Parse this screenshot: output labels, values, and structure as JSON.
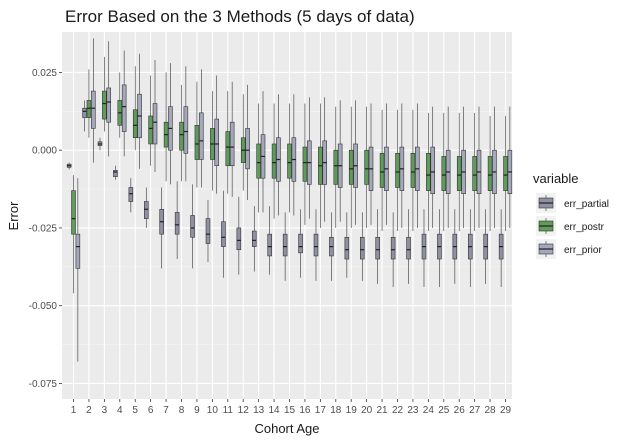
{
  "chart_data": {
    "type": "boxplot",
    "title": "Error Based on the 3 Methods (5 days of data)",
    "xlabel": "Cohort Age",
    "ylabel": "Error",
    "ylim": [
      -0.08,
      0.038
    ],
    "yticks": [
      0.025,
      0.0,
      -0.025,
      -0.05,
      -0.075
    ],
    "ytick_labels": [
      "0.025",
      "0.000",
      "-0.025",
      "-0.050",
      "-0.075"
    ],
    "categories": [
      "1",
      "2",
      "3",
      "4",
      "5",
      "6",
      "7",
      "8",
      "9",
      "10",
      "11",
      "12",
      "13",
      "14",
      "15",
      "16",
      "17",
      "18",
      "19",
      "20",
      "21",
      "22",
      "23",
      "24",
      "25",
      "26",
      "27",
      "28",
      "29"
    ],
    "grid": true,
    "legend": {
      "title": "variable",
      "position": "right"
    },
    "series": [
      {
        "name": "err_partial",
        "color": "#8f91a3",
        "boxes": [
          [
            -0.0062,
            -0.0055,
            -0.005,
            -0.0045,
            -0.004
          ],
          [
            0.006,
            0.0105,
            0.0125,
            0.0135,
            0.016
          ],
          [
            0.0,
            0.0015,
            0.002,
            0.0027,
            0.004
          ],
          [
            -0.0095,
            -0.0085,
            -0.007,
            -0.0065,
            -0.005
          ],
          [
            -0.02,
            -0.0165,
            -0.014,
            -0.012,
            -0.009
          ],
          [
            -0.025,
            -0.022,
            -0.019,
            -0.0165,
            -0.012
          ],
          [
            -0.038,
            -0.027,
            -0.023,
            -0.019,
            -0.012
          ],
          [
            -0.035,
            -0.027,
            -0.024,
            -0.02,
            -0.01
          ],
          [
            -0.038,
            -0.028,
            -0.025,
            -0.021,
            -0.011
          ],
          [
            -0.036,
            -0.03,
            -0.027,
            -0.022,
            -0.016
          ],
          [
            -0.041,
            -0.031,
            -0.028,
            -0.023,
            -0.013
          ],
          [
            -0.04,
            -0.032,
            -0.029,
            -0.025,
            -0.015
          ],
          [
            -0.039,
            -0.031,
            -0.029,
            -0.026,
            -0.018
          ],
          [
            -0.04,
            -0.034,
            -0.031,
            -0.027,
            -0.018
          ],
          [
            -0.042,
            -0.034,
            -0.031,
            -0.027,
            -0.02
          ],
          [
            -0.041,
            -0.033,
            -0.031,
            -0.027,
            -0.019
          ],
          [
            -0.042,
            -0.034,
            -0.031,
            -0.027,
            -0.019
          ],
          [
            -0.042,
            -0.034,
            -0.031,
            -0.028,
            -0.02
          ],
          [
            -0.041,
            -0.035,
            -0.032,
            -0.028,
            -0.02
          ],
          [
            -0.042,
            -0.035,
            -0.032,
            -0.028,
            -0.02
          ],
          [
            -0.043,
            -0.035,
            -0.032,
            -0.028,
            -0.019
          ],
          [
            -0.044,
            -0.035,
            -0.032,
            -0.028,
            -0.02
          ],
          [
            -0.043,
            -0.035,
            -0.032,
            -0.028,
            -0.019
          ],
          [
            -0.044,
            -0.035,
            -0.031,
            -0.027,
            -0.019
          ],
          [
            -0.044,
            -0.035,
            -0.031,
            -0.027,
            -0.019
          ],
          [
            -0.043,
            -0.035,
            -0.031,
            -0.027,
            -0.019
          ],
          [
            -0.044,
            -0.035,
            -0.031,
            -0.027,
            -0.019
          ],
          [
            -0.043,
            -0.035,
            -0.031,
            -0.027,
            -0.019
          ],
          [
            -0.044,
            -0.035,
            -0.031,
            -0.027,
            -0.019
          ]
        ]
      },
      {
        "name": "err_postr",
        "color": "#5f9c5a",
        "boxes": [
          [
            -0.046,
            -0.027,
            -0.022,
            -0.013,
            -0.008
          ],
          [
            0.004,
            0.0105,
            0.0135,
            0.016,
            0.026
          ],
          [
            0.006,
            0.01,
            0.015,
            0.019,
            0.03
          ],
          [
            0.004,
            0.008,
            0.012,
            0.016,
            0.025
          ],
          [
            0.0,
            0.004,
            0.008,
            0.013,
            0.027
          ],
          [
            -0.005,
            0.002,
            0.007,
            0.011,
            0.024
          ],
          [
            -0.01,
            0.001,
            0.005,
            0.009,
            0.025
          ],
          [
            -0.01,
            0.0,
            0.005,
            0.009,
            0.021
          ],
          [
            -0.012,
            -0.003,
            0.002,
            0.008,
            0.022
          ],
          [
            -0.013,
            -0.003,
            0.002,
            0.007,
            0.019
          ],
          [
            -0.014,
            -0.005,
            0.001,
            0.006,
            0.019
          ],
          [
            -0.013,
            -0.004,
            0.0,
            0.004,
            0.018
          ],
          [
            -0.02,
            -0.009,
            -0.004,
            0.002,
            0.015
          ],
          [
            -0.022,
            -0.009,
            -0.004,
            0.002,
            0.015
          ],
          [
            -0.02,
            -0.009,
            -0.004,
            0.002,
            0.015
          ],
          [
            -0.024,
            -0.01,
            -0.004,
            0.001,
            0.015
          ],
          [
            -0.025,
            -0.011,
            -0.005,
            0.001,
            0.015
          ],
          [
            -0.025,
            -0.011,
            -0.005,
            0.0,
            0.014
          ],
          [
            -0.025,
            -0.011,
            -0.006,
            0.0,
            0.014
          ],
          [
            -0.025,
            -0.011,
            -0.006,
            0.0,
            0.014
          ],
          [
            -0.026,
            -0.012,
            -0.007,
            -0.001,
            0.013
          ],
          [
            -0.026,
            -0.012,
            -0.007,
            -0.001,
            0.013
          ],
          [
            -0.026,
            -0.012,
            -0.007,
            -0.001,
            0.013
          ],
          [
            -0.026,
            -0.013,
            -0.008,
            -0.001,
            0.012
          ],
          [
            -0.026,
            -0.013,
            -0.008,
            -0.002,
            0.012
          ],
          [
            -0.026,
            -0.013,
            -0.008,
            -0.002,
            0.012
          ],
          [
            -0.026,
            -0.013,
            -0.008,
            -0.002,
            0.012
          ],
          [
            -0.026,
            -0.013,
            -0.008,
            -0.002,
            0.011
          ],
          [
            -0.026,
            -0.013,
            -0.008,
            -0.002,
            0.011
          ]
        ]
      },
      {
        "name": "err_prior",
        "color": "#a5a8ba",
        "boxes": [
          [
            -0.068,
            -0.038,
            -0.031,
            -0.027,
            -0.009
          ],
          [
            -0.004,
            0.007,
            0.0135,
            0.019,
            0.036
          ],
          [
            -0.002,
            0.009,
            0.0155,
            0.02,
            0.035
          ],
          [
            -0.002,
            0.006,
            0.014,
            0.021,
            0.032
          ],
          [
            -0.006,
            0.004,
            0.011,
            0.018,
            0.031
          ],
          [
            -0.007,
            0.002,
            0.009,
            0.015,
            0.029
          ],
          [
            -0.011,
            0.0,
            0.007,
            0.014,
            0.028
          ],
          [
            -0.01,
            -0.001,
            0.006,
            0.014,
            0.027
          ],
          [
            -0.012,
            -0.003,
            0.003,
            0.012,
            0.026
          ],
          [
            -0.014,
            -0.005,
            0.002,
            0.01,
            0.024
          ],
          [
            -0.015,
            -0.005,
            0.001,
            0.009,
            0.022
          ],
          [
            -0.016,
            -0.006,
            0.0,
            0.007,
            0.021
          ],
          [
            -0.02,
            -0.009,
            -0.002,
            0.005,
            0.019
          ],
          [
            -0.021,
            -0.01,
            -0.003,
            0.004,
            0.018
          ],
          [
            -0.021,
            -0.01,
            -0.003,
            0.004,
            0.018
          ],
          [
            -0.022,
            -0.011,
            -0.004,
            0.003,
            0.017
          ],
          [
            -0.023,
            -0.011,
            -0.004,
            0.003,
            0.017
          ],
          [
            -0.023,
            -0.012,
            -0.005,
            0.002,
            0.016
          ],
          [
            -0.024,
            -0.012,
            -0.005,
            0.002,
            0.016
          ],
          [
            -0.024,
            -0.013,
            -0.006,
            0.001,
            0.015
          ],
          [
            -0.024,
            -0.013,
            -0.006,
            0.001,
            0.015
          ],
          [
            -0.025,
            -0.013,
            -0.006,
            0.001,
            0.015
          ],
          [
            -0.025,
            -0.013,
            -0.006,
            0.001,
            0.015
          ],
          [
            -0.025,
            -0.014,
            -0.007,
            0.001,
            0.014
          ],
          [
            -0.025,
            -0.014,
            -0.007,
            0.0,
            0.014
          ],
          [
            -0.025,
            -0.014,
            -0.007,
            0.0,
            0.014
          ],
          [
            -0.025,
            -0.014,
            -0.007,
            0.0,
            0.014
          ],
          [
            -0.025,
            -0.014,
            -0.007,
            0.0,
            0.014
          ],
          [
            -0.025,
            -0.014,
            -0.007,
            0.0,
            0.014
          ]
        ]
      }
    ]
  }
}
